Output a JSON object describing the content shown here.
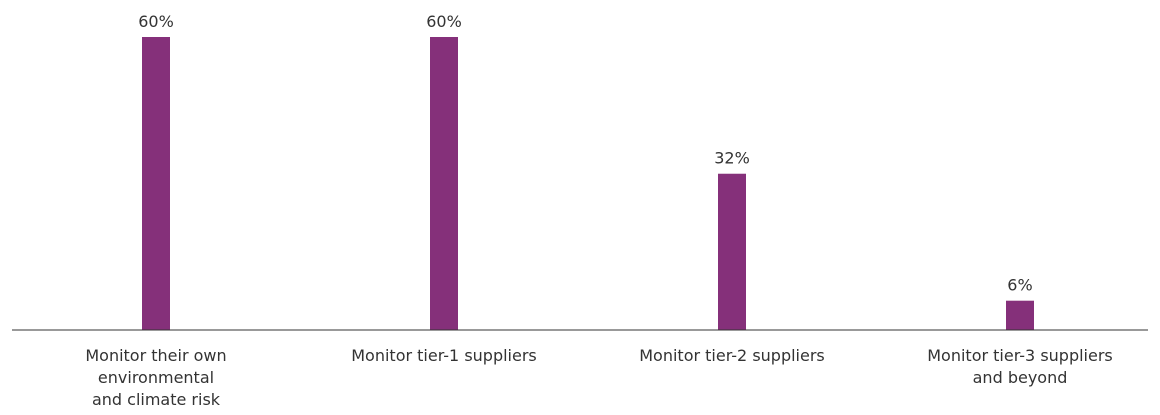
{
  "chart_data": {
    "type": "bar",
    "categories": [
      [
        "Monitor their own",
        "environmental",
        "and climate risk"
      ],
      [
        "Monitor tier-1 suppliers"
      ],
      [
        "Monitor tier-2 suppliers"
      ],
      [
        "Monitor tier-3 suppliers",
        "and beyond"
      ]
    ],
    "values": [
      60,
      60,
      32,
      6
    ],
    "value_labels": [
      "60%",
      "60%",
      "32%",
      "6%"
    ],
    "ylim": [
      0,
      60
    ],
    "grid": false,
    "bar_color": "#85307A",
    "axis_color": "#333333"
  }
}
